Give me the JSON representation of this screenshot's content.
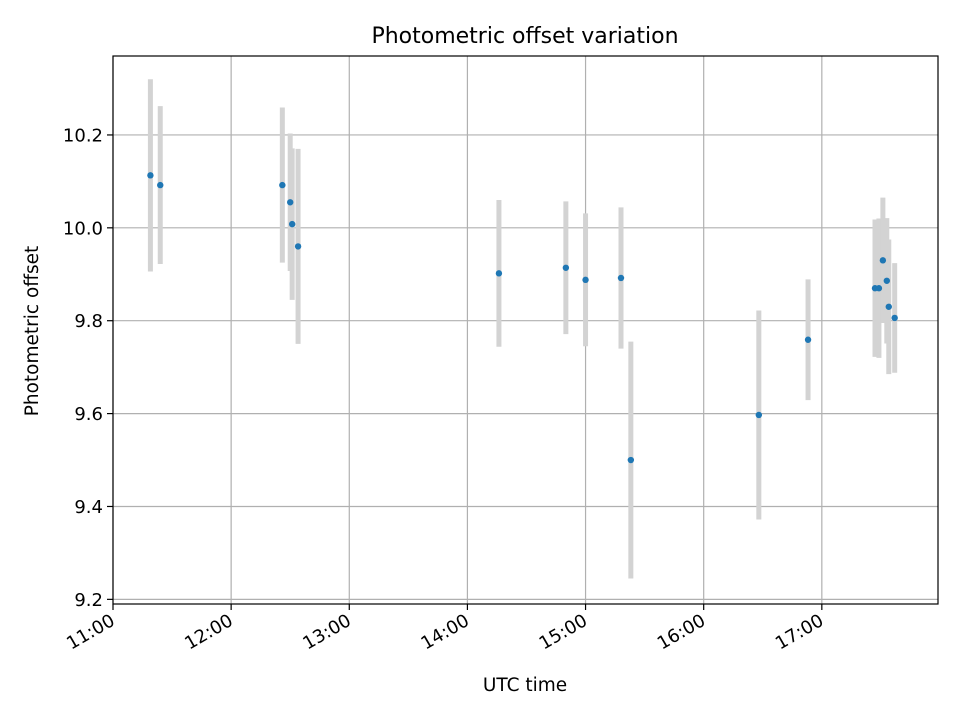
{
  "chart_data": {
    "type": "scatter",
    "title": "Photometric offset variation",
    "xlabel": "UTC time",
    "ylabel": "Photometric offset",
    "x_is_time": true,
    "xlim": [
      "11:00",
      "17:59"
    ],
    "ylim": [
      9.19,
      10.37
    ],
    "x_ticks": [
      "11:00",
      "12:00",
      "13:00",
      "14:00",
      "15:00",
      "16:00",
      "17:00"
    ],
    "y_ticks": [
      "9.2",
      "9.4",
      "9.6",
      "9.8",
      "10.0",
      "10.2"
    ],
    "grid": true,
    "colors": {
      "marker": "#1f77b4",
      "errorbar": "#d3d3d3",
      "grid": "#b0b0b0",
      "axes": "#000000"
    },
    "series": [
      {
        "points": [
          {
            "x": "11:19",
            "y": 10.113,
            "err": 0.207
          },
          {
            "x": "11:24",
            "y": 10.092,
            "err": 0.17
          },
          {
            "x": "12:26",
            "y": 10.092,
            "err": 0.167
          },
          {
            "x": "12:30",
            "y": 10.055,
            "err": 0.148
          },
          {
            "x": "12:31",
            "y": 10.008,
            "err": 0.163
          },
          {
            "x": "12:34",
            "y": 9.96,
            "err": 0.21
          },
          {
            "x": "14:16",
            "y": 9.902,
            "err": 0.158
          },
          {
            "x": "14:50",
            "y": 9.914,
            "err": 0.143
          },
          {
            "x": "15:00",
            "y": 9.888,
            "err": 0.143
          },
          {
            "x": "15:18",
            "y": 9.892,
            "err": 0.152
          },
          {
            "x": "15:23",
            "y": 9.5,
            "err": 0.255
          },
          {
            "x": "16:28",
            "y": 9.597,
            "err": 0.225
          },
          {
            "x": "16:53",
            "y": 9.759,
            "err": 0.13
          },
          {
            "x": "17:27",
            "y": 9.87,
            "err": 0.148
          },
          {
            "x": "17:29",
            "y": 9.87,
            "err": 0.15
          },
          {
            "x": "17:31",
            "y": 9.93,
            "err": 0.135
          },
          {
            "x": "17:33",
            "y": 9.886,
            "err": 0.135
          },
          {
            "x": "17:34",
            "y": 9.83,
            "err": 0.145
          },
          {
            "x": "17:37",
            "y": 9.806,
            "err": 0.118
          }
        ]
      }
    ]
  }
}
